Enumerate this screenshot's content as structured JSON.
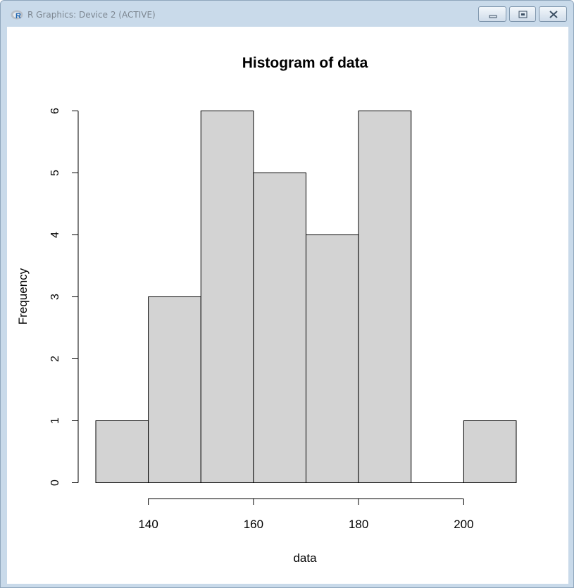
{
  "window": {
    "title": "R Graphics: Device 2 (ACTIVE)",
    "app_icon": "r-logo-icon",
    "buttons": [
      "minimize-icon",
      "maximize-icon",
      "close-icon"
    ]
  },
  "chart_data": {
    "type": "bar",
    "title": "Histogram of data",
    "xlabel": "data",
    "ylabel": "Frequency",
    "bins": [
      {
        "start": 130,
        "end": 140,
        "count": 1
      },
      {
        "start": 140,
        "end": 150,
        "count": 3
      },
      {
        "start": 150,
        "end": 160,
        "count": 6
      },
      {
        "start": 160,
        "end": 170,
        "count": 5
      },
      {
        "start": 170,
        "end": 180,
        "count": 4
      },
      {
        "start": 180,
        "end": 190,
        "count": 6
      },
      {
        "start": 190,
        "end": 200,
        "count": 0
      },
      {
        "start": 200,
        "end": 210,
        "count": 1
      }
    ],
    "xticks": [
      "140",
      "160",
      "180",
      "200"
    ],
    "xtick_values": [
      140,
      160,
      180,
      200
    ],
    "yticks": [
      "0",
      "1",
      "2",
      "3",
      "4",
      "5",
      "6"
    ],
    "ytick_values": [
      0,
      1,
      2,
      3,
      4,
      5,
      6
    ],
    "xlim": [
      130,
      210
    ],
    "ylim": [
      0,
      6
    ],
    "bar_color": "#d3d3d3",
    "grid": false
  }
}
